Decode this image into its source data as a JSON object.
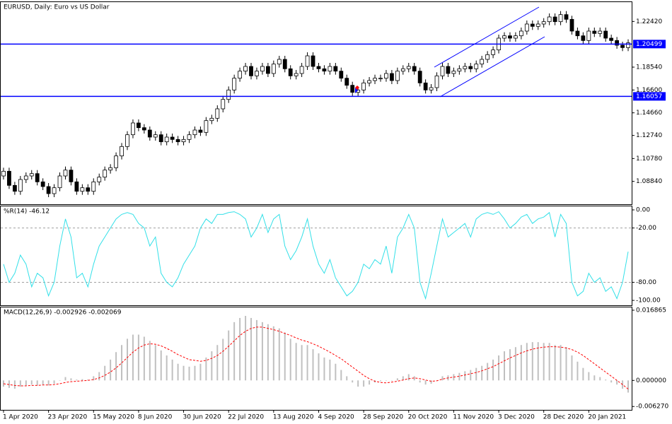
{
  "chart_data": [
    {
      "type": "candlestick",
      "title": "EURUSD, Daily:  Euro vs US Dollar",
      "ylim": [
        1.069,
        1.2406
      ],
      "yticks": [
        {
          "value": 1.2242,
          "label": "1.22420"
        },
        {
          "value": 1.1854,
          "label": "1.18540"
        },
        {
          "value": 1.166,
          "label": "1.16600"
        },
        {
          "value": 1.1466,
          "label": "1.14660"
        },
        {
          "value": 1.1274,
          "label": "1.12740"
        },
        {
          "value": 1.1078,
          "label": "1.10780"
        },
        {
          "value": 1.0884,
          "label": "1.08840"
        }
      ],
      "hlines": [
        {
          "value": 1.20499,
          "label": "1.20499"
        },
        {
          "value": 1.16057,
          "label": "1.16057"
        }
      ],
      "hline_color": "#0000ff",
      "up_color": "#ffffff",
      "down_color": "#000000",
      "color": "#000000",
      "open": [
        1.093,
        1.097,
        1.085,
        1.08,
        1.09,
        1.093,
        1.095,
        1.088,
        1.084,
        1.078,
        1.083,
        1.093,
        1.098,
        1.088,
        1.08,
        1.083,
        1.08,
        1.088,
        1.092,
        1.098,
        1.1,
        1.11,
        1.118,
        1.128,
        1.138,
        1.134,
        1.132,
        1.126,
        1.128,
        1.122,
        1.126,
        1.124,
        1.122,
        1.124,
        1.128,
        1.132,
        1.13,
        1.14,
        1.142,
        1.15,
        1.158,
        1.166,
        1.176,
        1.182,
        1.186,
        1.178,
        1.182,
        1.186,
        1.18,
        1.188,
        1.192,
        1.184,
        1.178,
        1.18,
        1.186,
        1.195,
        1.186,
        1.184,
        1.182,
        1.186,
        1.182,
        1.176,
        1.17,
        1.164,
        1.166,
        1.172,
        1.174,
        1.176,
        1.176,
        1.18,
        1.174,
        1.182,
        1.184,
        1.186,
        1.182,
        1.172,
        1.166,
        1.168,
        1.178,
        1.186,
        1.18,
        1.182,
        1.184,
        1.186,
        1.184,
        1.188,
        1.192,
        1.196,
        1.2,
        1.21,
        1.212,
        1.21,
        1.212,
        1.216,
        1.222,
        1.22,
        1.222,
        1.224,
        1.228,
        1.224,
        1.23,
        1.226,
        1.216,
        1.212,
        1.208,
        1.216,
        1.214,
        1.216,
        1.21,
        1.208,
        1.204,
        1.202
      ],
      "high": [
        1.1,
        1.1,
        1.088,
        1.093,
        1.096,
        1.098,
        1.098,
        1.091,
        1.087,
        1.086,
        1.096,
        1.101,
        1.101,
        1.091,
        1.086,
        1.086,
        1.091,
        1.095,
        1.101,
        1.103,
        1.113,
        1.121,
        1.131,
        1.141,
        1.141,
        1.137,
        1.135,
        1.131,
        1.131,
        1.129,
        1.129,
        1.127,
        1.127,
        1.131,
        1.135,
        1.135,
        1.143,
        1.145,
        1.153,
        1.161,
        1.169,
        1.179,
        1.185,
        1.189,
        1.189,
        1.185,
        1.189,
        1.189,
        1.191,
        1.195,
        1.195,
        1.187,
        1.183,
        1.189,
        1.198,
        1.198,
        1.189,
        1.187,
        1.189,
        1.189,
        1.185,
        1.179,
        1.173,
        1.169,
        1.175,
        1.177,
        1.179,
        1.179,
        1.183,
        1.183,
        1.185,
        1.187,
        1.189,
        1.189,
        1.185,
        1.175,
        1.171,
        1.181,
        1.189,
        1.189,
        1.185,
        1.187,
        1.189,
        1.189,
        1.191,
        1.195,
        1.199,
        1.203,
        1.213,
        1.215,
        1.215,
        1.215,
        1.219,
        1.225,
        1.225,
        1.225,
        1.227,
        1.231,
        1.231,
        1.233,
        1.233,
        1.229,
        1.219,
        1.215,
        1.219,
        1.219,
        1.219,
        1.219,
        1.213,
        1.211,
        1.207,
        1.209
      ],
      "low": [
        1.09,
        1.082,
        1.077,
        1.077,
        1.087,
        1.09,
        1.085,
        1.081,
        1.075,
        1.075,
        1.08,
        1.09,
        1.085,
        1.077,
        1.077,
        1.077,
        1.077,
        1.085,
        1.089,
        1.095,
        1.097,
        1.107,
        1.115,
        1.125,
        1.131,
        1.129,
        1.123,
        1.123,
        1.119,
        1.119,
        1.121,
        1.119,
        1.119,
        1.121,
        1.125,
        1.127,
        1.127,
        1.137,
        1.139,
        1.147,
        1.155,
        1.163,
        1.173,
        1.179,
        1.175,
        1.175,
        1.179,
        1.177,
        1.177,
        1.185,
        1.181,
        1.175,
        1.175,
        1.177,
        1.183,
        1.183,
        1.181,
        1.179,
        1.179,
        1.179,
        1.173,
        1.167,
        1.161,
        1.161,
        1.163,
        1.169,
        1.171,
        1.173,
        1.173,
        1.171,
        1.171,
        1.179,
        1.181,
        1.179,
        1.169,
        1.163,
        1.163,
        1.165,
        1.175,
        1.177,
        1.177,
        1.179,
        1.181,
        1.181,
        1.181,
        1.185,
        1.189,
        1.193,
        1.197,
        1.207,
        1.207,
        1.207,
        1.209,
        1.213,
        1.217,
        1.217,
        1.219,
        1.221,
        1.221,
        1.221,
        1.223,
        1.213,
        1.209,
        1.205,
        1.205,
        1.211,
        1.211,
        1.207,
        1.205,
        1.201,
        1.199,
        1.199
      ],
      "close": [
        1.097,
        1.085,
        1.08,
        1.09,
        1.093,
        1.095,
        1.088,
        1.084,
        1.078,
        1.083,
        1.093,
        1.098,
        1.088,
        1.08,
        1.083,
        1.08,
        1.088,
        1.092,
        1.098,
        1.1,
        1.11,
        1.118,
        1.128,
        1.138,
        1.134,
        1.132,
        1.126,
        1.128,
        1.122,
        1.126,
        1.124,
        1.122,
        1.124,
        1.128,
        1.132,
        1.13,
        1.14,
        1.142,
        1.15,
        1.158,
        1.166,
        1.176,
        1.182,
        1.186,
        1.178,
        1.182,
        1.186,
        1.18,
        1.188,
        1.192,
        1.184,
        1.178,
        1.18,
        1.186,
        1.195,
        1.186,
        1.184,
        1.182,
        1.186,
        1.182,
        1.176,
        1.17,
        1.164,
        1.166,
        1.172,
        1.174,
        1.176,
        1.176,
        1.18,
        1.174,
        1.182,
        1.184,
        1.186,
        1.182,
        1.172,
        1.166,
        1.168,
        1.178,
        1.186,
        1.18,
        1.182,
        1.184,
        1.186,
        1.184,
        1.188,
        1.192,
        1.196,
        1.2,
        1.21,
        1.212,
        1.21,
        1.212,
        1.216,
        1.222,
        1.22,
        1.222,
        1.224,
        1.228,
        1.224,
        1.23,
        1.226,
        1.216,
        1.212,
        1.208,
        1.216,
        1.214,
        1.216,
        1.21,
        1.208,
        1.204,
        1.202,
        1.206
      ]
    },
    {
      "type": "line",
      "title": "%R(14) -46.12",
      "ylim": [
        -105.4,
        3.9
      ],
      "yticks": [
        {
          "value": 0,
          "label": "0.00"
        },
        {
          "value": -20,
          "label": "-20.00"
        },
        {
          "value": -80,
          "label": "-80.00"
        },
        {
          "value": -100,
          "label": "-100.00"
        }
      ],
      "levels": [
        -20,
        -80
      ],
      "series": [
        {
          "color": "#33e0e8",
          "values": [
            -60,
            -80,
            -70,
            -50,
            -60,
            -85,
            -70,
            -75,
            -95,
            -80,
            -40,
            -10,
            -30,
            -75,
            -70,
            -85,
            -60,
            -40,
            -30,
            -20,
            -10,
            -5,
            -3,
            -5,
            -15,
            -20,
            -40,
            -30,
            -70,
            -80,
            -85,
            -75,
            -60,
            -50,
            -40,
            -20,
            -10,
            -15,
            -5,
            -5,
            -3,
            -2,
            -5,
            -10,
            -30,
            -20,
            -5,
            -25,
            -10,
            -5,
            -40,
            -55,
            -45,
            -30,
            -10,
            -40,
            -60,
            -70,
            -55,
            -75,
            -85,
            -95,
            -90,
            -80,
            -60,
            -65,
            -55,
            -60,
            -40,
            -70,
            -30,
            -20,
            -5,
            -20,
            -80,
            -98,
            -70,
            -40,
            -10,
            -30,
            -25,
            -20,
            -15,
            -30,
            -10,
            -5,
            -3,
            -5,
            -2,
            -10,
            -20,
            -15,
            -8,
            -5,
            -15,
            -10,
            -8,
            -3,
            -30,
            -5,
            -15,
            -80,
            -95,
            -90,
            -70,
            -80,
            -75,
            -90,
            -85,
            -98,
            -80,
            -46.12
          ]
        }
      ]
    },
    {
      "type": "macd",
      "title": "MACD(12,26,9) -0.002926 -0.002069",
      "ylim": [
        -0.00708,
        0.01754
      ],
      "yticks": [
        {
          "value": 0.016865,
          "label": "0.016865"
        },
        {
          "value": 0,
          "label": "0.000000"
        },
        {
          "value": -0.00627,
          "label": "-0.006270"
        }
      ],
      "categories": [
        "1 Apr 2020",
        null,
        null,
        null,
        null,
        null,
        null,
        null,
        "23 Apr 2020",
        null,
        null,
        null,
        null,
        null,
        null,
        null,
        "15 May 2020",
        null,
        null,
        null,
        null,
        null,
        null,
        null,
        "8 Jun 2020",
        null,
        null,
        null,
        null,
        null,
        null,
        null,
        "30 Jun 2020",
        null,
        null,
        null,
        null,
        null,
        null,
        null,
        "22 Jul 2020",
        null,
        null,
        null,
        null,
        null,
        null,
        null,
        "13 Aug 2020",
        null,
        null,
        null,
        null,
        null,
        null,
        null,
        "4 Sep 2020",
        null,
        null,
        null,
        null,
        null,
        null,
        null,
        "28 Sep 2020",
        null,
        null,
        null,
        null,
        null,
        null,
        null,
        "20 Oct 2020",
        null,
        null,
        null,
        null,
        null,
        null,
        null,
        "11 Nov 2020",
        null,
        null,
        null,
        null,
        null,
        null,
        null,
        "3 Dec 2020",
        null,
        null,
        null,
        null,
        null,
        null,
        null,
        "28 Dec 2020",
        null,
        null,
        null,
        null,
        null,
        null,
        null,
        "20 Jan 2021",
        null,
        null,
        null,
        null,
        null,
        null,
        null
      ],
      "series": [
        {
          "style": "bar",
          "color": "#c0c0c0",
          "values": [
            -0.0015,
            -0.0018,
            -0.002,
            -0.0015,
            -0.0012,
            -0.001,
            -0.0012,
            -0.001,
            -0.0012,
            -0.0008,
            0.0,
            0.0008,
            0.0005,
            0.0002,
            0.0003,
            0.0002,
            0.001,
            0.002,
            0.0035,
            0.005,
            0.0068,
            0.0085,
            0.01,
            0.011,
            0.011,
            0.0105,
            0.0095,
            0.0085,
            0.0072,
            0.006,
            0.005,
            0.004,
            0.0035,
            0.0033,
            0.0035,
            0.004,
            0.0055,
            0.007,
            0.0085,
            0.01,
            0.012,
            0.014,
            0.015,
            0.0155,
            0.015,
            0.0145,
            0.014,
            0.0135,
            0.013,
            0.0125,
            0.0115,
            0.01,
            0.009,
            0.0085,
            0.0085,
            0.0075,
            0.0065,
            0.0055,
            0.005,
            0.004,
            0.0025,
            0.001,
            -0.0005,
            -0.0015,
            -0.0015,
            -0.001,
            -0.0005,
            -0.0002,
            0.0,
            0.0,
            0.0005,
            0.001,
            0.0015,
            0.001,
            -0.0005,
            -0.001,
            -0.0008,
            0.0,
            0.001,
            0.0012,
            0.0015,
            0.0018,
            0.0022,
            0.0025,
            0.003,
            0.0035,
            0.0042,
            0.005,
            0.006,
            0.007,
            0.0075,
            0.008,
            0.0085,
            0.009,
            0.0092,
            0.0092,
            0.009,
            0.009,
            0.0085,
            0.0085,
            0.008,
            0.006,
            0.0045,
            0.003,
            0.002,
            0.0012,
            0.0008,
            0.0002,
            -0.0005,
            -0.001,
            -0.002,
            -0.002926
          ]
        },
        {
          "style": "dashed",
          "color": "#ff0000",
          "values": [
            -0.0008,
            -0.001,
            -0.0012,
            -0.0013,
            -0.0013,
            -0.0012,
            -0.0012,
            -0.0011,
            -0.0011,
            -0.001,
            -0.0008,
            -0.0005,
            -0.0003,
            -0.0002,
            -0.0001,
            0.0,
            0.0002,
            0.0006,
            0.0012,
            0.002,
            0.003,
            0.0042,
            0.0055,
            0.0068,
            0.0078,
            0.0085,
            0.0088,
            0.0087,
            0.0083,
            0.0077,
            0.007,
            0.0062,
            0.0056,
            0.005,
            0.0048,
            0.0046,
            0.0048,
            0.0053,
            0.006,
            0.007,
            0.0082,
            0.0095,
            0.0108,
            0.0118,
            0.0125,
            0.0128,
            0.0128,
            0.0125,
            0.0122,
            0.0118,
            0.0113,
            0.0108,
            0.0102,
            0.0097,
            0.0093,
            0.0088,
            0.0082,
            0.0075,
            0.0068,
            0.006,
            0.0052,
            0.0042,
            0.0032,
            0.0022,
            0.0012,
            0.0004,
            -0.0002,
            -0.0005,
            -0.0006,
            -0.0004,
            -0.0002,
            0.0001,
            0.0004,
            0.0006,
            0.0004,
            0.0001,
            -0.0002,
            -0.0001,
            0.0003,
            0.0006,
            0.0008,
            0.001,
            0.0013,
            0.0016,
            0.0019,
            0.0023,
            0.0028,
            0.0033,
            0.004,
            0.0047,
            0.0054,
            0.006,
            0.0066,
            0.0071,
            0.0075,
            0.0078,
            0.008,
            0.0081,
            0.0081,
            0.008,
            0.0078,
            0.0074,
            0.0068,
            0.006,
            0.005,
            0.004,
            0.003,
            0.002,
            0.001,
            0.0,
            -0.001,
            -0.002069
          ]
        }
      ]
    }
  ]
}
